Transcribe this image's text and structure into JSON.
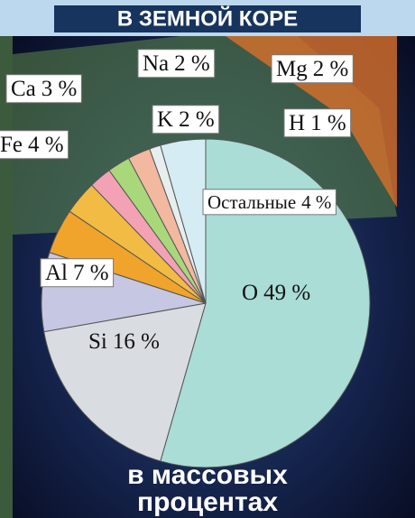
{
  "chart_data": {
    "type": "pie",
    "title": "В ЗЕМНОЙ КОРЕ",
    "note": [
      "в массовых",
      "процентах"
    ],
    "categories": [
      "O",
      "Si",
      "Al",
      "Fe",
      "Ca",
      "Na",
      "K",
      "Mg",
      "H",
      "Остальные"
    ],
    "values": [
      49,
      16,
      7,
      4,
      3,
      2,
      2,
      2,
      1,
      4
    ],
    "value_labels": [
      "49 %",
      "16 %",
      "7 %",
      "4 %",
      "3 %",
      "2 %",
      "2 %",
      "2 %",
      "1 %",
      "4 %"
    ],
    "colors": [
      "#a9ddd6",
      "#d9dde2",
      "#c6c7e2",
      "#f0a42c",
      "#f2bc44",
      "#f2a2b4",
      "#a9d87a",
      "#f2b8a0",
      "#e6eeee",
      "#d6ecf4"
    ]
  }
}
